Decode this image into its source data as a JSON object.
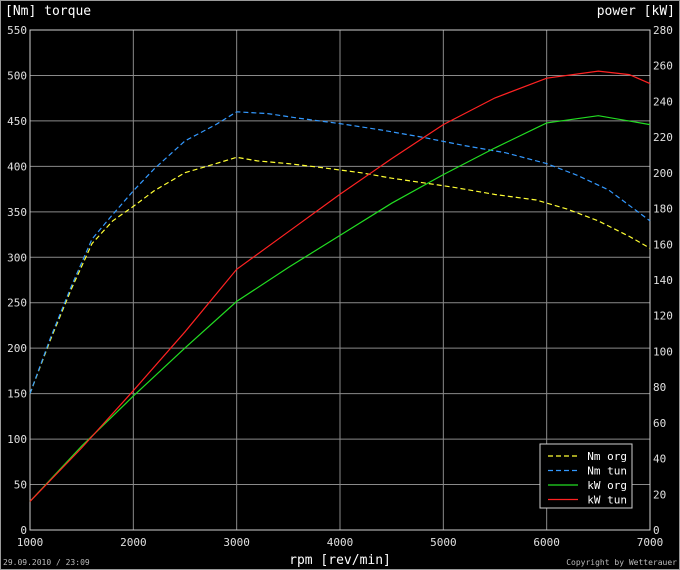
{
  "chart_data": {
    "type": "line",
    "left_axis_title": "[Nm]  torque",
    "right_axis_title": "power [kW]",
    "xlabel": "rpm [rev/min]",
    "footer_left": "29.09.2010 / 23:09",
    "footer_right": "Copyright by Wetterauer",
    "xlim": [
      1000,
      7000
    ],
    "ylim_left": [
      0,
      550
    ],
    "ylim_right": [
      0,
      280
    ],
    "x_ticks": [
      1000,
      2000,
      3000,
      4000,
      5000,
      6000,
      7000
    ],
    "y_ticks_left": [
      0,
      50,
      100,
      150,
      200,
      250,
      300,
      350,
      400,
      450,
      500,
      550
    ],
    "y_ticks_right": [
      0,
      20,
      40,
      60,
      80,
      100,
      120,
      140,
      160,
      180,
      200,
      220,
      240,
      260,
      280
    ],
    "grid": true,
    "legend_position": "bottom-right",
    "series": [
      {
        "name": "Nm org",
        "axis": "left",
        "dashed": true,
        "color": "#ffff33",
        "x": [
          1000,
          1200,
          1400,
          1600,
          1800,
          2000,
          2200,
          2500,
          2800,
          3000,
          3200,
          3500,
          3800,
          4200,
          4500,
          4800,
          5100,
          5500,
          5900,
          6200,
          6500,
          6800,
          7000
        ],
        "y": [
          150,
          210,
          265,
          315,
          340,
          356,
          373,
          393,
          403,
          410,
          406,
          403,
          399,
          393,
          387,
          382,
          377,
          369,
          363,
          353,
          340,
          323,
          310
        ]
      },
      {
        "name": "Nm tun",
        "axis": "left",
        "dashed": true,
        "color": "#3399ff",
        "x": [
          1000,
          1200,
          1400,
          1600,
          1800,
          2000,
          2200,
          2500,
          2800,
          3000,
          3300,
          3600,
          4000,
          4400,
          4800,
          5200,
          5600,
          6000,
          6300,
          6600,
          7000
        ],
        "y": [
          150,
          212,
          268,
          320,
          347,
          373,
          397,
          428,
          446,
          460,
          458,
          453,
          447,
          440,
          432,
          423,
          415,
          403,
          390,
          374,
          340
        ]
      },
      {
        "name": "kW org",
        "axis": "right",
        "dashed": false,
        "color": "#22dd22",
        "x": [
          1000,
          1500,
          2000,
          2500,
          3000,
          3500,
          4000,
          4500,
          5000,
          5500,
          6000,
          6500,
          7000
        ],
        "y": [
          16,
          47,
          75,
          102,
          128,
          147,
          165,
          183,
          199,
          214,
          228,
          232,
          227
        ]
      },
      {
        "name": "kW tun",
        "axis": "right",
        "dashed": false,
        "color": "#ff2222",
        "x": [
          1000,
          1500,
          2000,
          2500,
          3000,
          3500,
          4000,
          4500,
          5000,
          5500,
          6000,
          6500,
          6800,
          7000
        ],
        "y": [
          16,
          46,
          78,
          111,
          146,
          167,
          188,
          208,
          227,
          242,
          253,
          257,
          255,
          250
        ]
      }
    ]
  }
}
